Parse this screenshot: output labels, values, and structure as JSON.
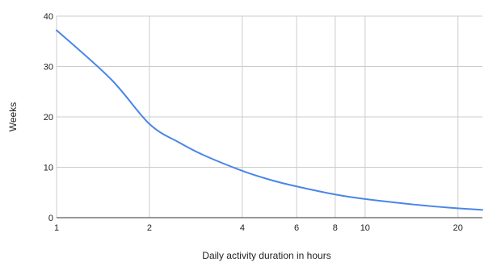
{
  "chart_data": {
    "type": "line",
    "title": "",
    "xlabel": "Daily activity duration in hours",
    "ylabel": "Weeks",
    "x_scale": "log",
    "xlim": [
      1,
      24
    ],
    "ylim": [
      0,
      40
    ],
    "x_ticks": [
      1,
      2,
      4,
      6,
      8,
      10,
      20
    ],
    "y_ticks": [
      0,
      10,
      20,
      30,
      40
    ],
    "grid": true,
    "legend": "none",
    "series": [
      {
        "color": "#4a86e8",
        "x": [
          1,
          1.5,
          2,
          2.5,
          3,
          4,
          5,
          6,
          8,
          10,
          15,
          20,
          24
        ],
        "y": [
          37.2,
          27.5,
          18.6,
          14.9,
          12.4,
          9.3,
          7.4,
          6.2,
          4.6,
          3.7,
          2.5,
          1.86,
          1.55
        ]
      }
    ]
  }
}
